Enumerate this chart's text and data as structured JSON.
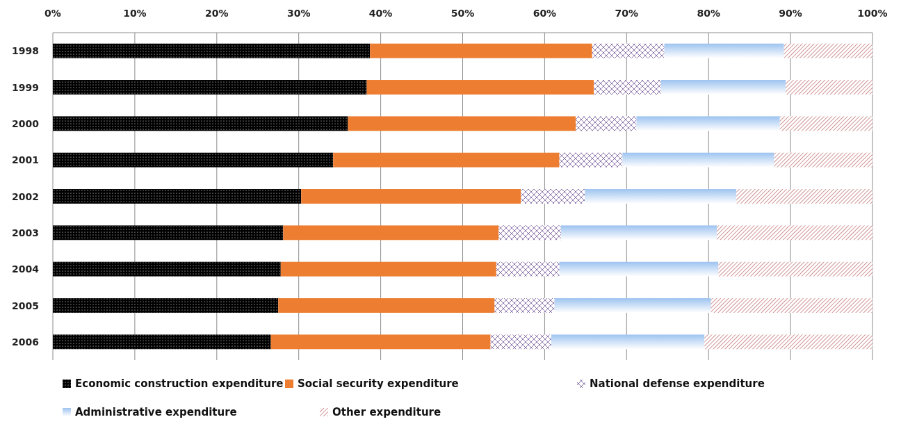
{
  "chart_data": {
    "type": "bar",
    "orientation": "horizontal",
    "stacked": true,
    "categories": [
      "1998",
      "1999",
      "2000",
      "2001",
      "2002",
      "2003",
      "2004",
      "2005",
      "2006"
    ],
    "series": [
      {
        "name": "Economic construction expenditure",
        "color": "#000000",
        "values": [
          38.7,
          38.3,
          36.0,
          34.2,
          30.3,
          28.1,
          27.8,
          27.5,
          26.6
        ]
      },
      {
        "name": "Social security expenditure",
        "color": "#ed7d31",
        "values": [
          27.1,
          27.7,
          27.8,
          27.6,
          26.8,
          26.3,
          26.3,
          26.4,
          26.8
        ]
      },
      {
        "name": "National defense expenditure",
        "color": "#8064a2",
        "values": [
          8.8,
          8.2,
          7.4,
          7.7,
          7.8,
          7.6,
          7.7,
          7.3,
          7.4
        ]
      },
      {
        "name": "Administrative expenditure",
        "color": "#9dc3f0",
        "values": [
          14.6,
          15.2,
          17.5,
          18.5,
          18.5,
          19.0,
          19.4,
          19.1,
          18.7
        ]
      },
      {
        "name": "Other expenditure",
        "color": "#b04a4a",
        "values": [
          10.8,
          10.6,
          11.3,
          12.0,
          16.6,
          19.0,
          18.8,
          19.7,
          20.5
        ]
      }
    ],
    "xlim": [
      0,
      100
    ],
    "xticks": [
      {
        "value": 0,
        "label": "0%"
      },
      {
        "value": 10,
        "label": "10%"
      },
      {
        "value": 20,
        "label": "20%"
      },
      {
        "value": 30,
        "label": "30%"
      },
      {
        "value": 40,
        "label": "40%"
      },
      {
        "value": 50,
        "label": "50%"
      },
      {
        "value": 60,
        "label": "60%"
      },
      {
        "value": 70,
        "label": "70%"
      },
      {
        "value": 80,
        "label": "80%"
      },
      {
        "value": 90,
        "label": "90%"
      },
      {
        "value": 100,
        "label": "100%"
      }
    ],
    "grid": "x",
    "legend": "bottom"
  }
}
